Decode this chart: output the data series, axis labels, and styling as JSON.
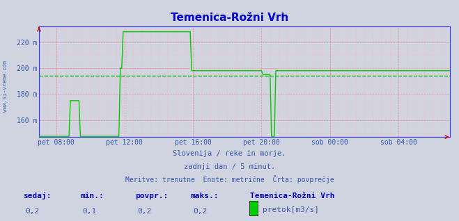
{
  "title": "Temenica-Rožni Vrh",
  "title_color": "#0000cc",
  "bg_color": "#d0d4e0",
  "plot_bg_color": "#d0d4e0",
  "ytick_labels": [
    "160 m",
    "180 m",
    "200 m",
    "220 m"
  ],
  "ytick_values": [
    160,
    180,
    200,
    220
  ],
  "ylim": [
    147,
    232
  ],
  "xlim": [
    0,
    288
  ],
  "xtick_positions": [
    12,
    60,
    108,
    156,
    204,
    252
  ],
  "xtick_labels": [
    "pet 08:00",
    "pet 12:00",
    "pet 16:00",
    "pet 20:00",
    "sob 00:00",
    "sob 04:00"
  ],
  "avg_line_y": 194,
  "avg_line_color": "#00bb00",
  "line_color": "#00cc00",
  "grid_color_major": "#ff8888",
  "grid_color_minor": "#ffbbbb",
  "axis_color": "#3333ff",
  "arrow_color": "#cc0000",
  "watermark": "www.si-vreme.com",
  "subtitle1": "Slovenija / reke in morje.",
  "subtitle2": "zadnji dan / 5 minut.",
  "subtitle3": "Meritve: trenutne  Enote: metrične  Črta: povprečje",
  "subtitle_color": "#3355aa",
  "bottom_labels": [
    "sedaj:",
    "min.:",
    "povpr.:",
    "maks.:"
  ],
  "bottom_values": [
    "0,2",
    "0,1",
    "0,2",
    "0,2"
  ],
  "bottom_series_label": "Temenica-Rožni Vrh",
  "bottom_legend_label": "pretok[m3/s]",
  "bottom_label_color": "#0000bb",
  "bottom_value_color": "#3355aa",
  "sidewatermark_color": "#3355aa",
  "figsize": [
    6.59,
    3.18
  ],
  "dpi": 100
}
